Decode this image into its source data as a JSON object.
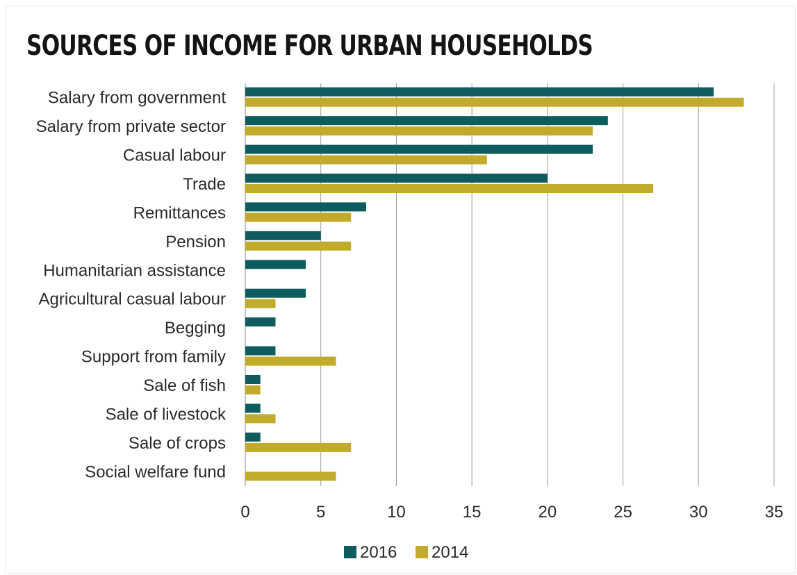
{
  "chart_data": {
    "type": "bar",
    "orientation": "horizontal",
    "title": "SOURCES OF INCOME FOR URBAN HOUSEHOLDS",
    "categories": [
      "Salary from government",
      "Salary from private sector",
      "Casual labour",
      "Trade",
      "Remittances",
      "Pension",
      "Humanitarian assistance",
      "Agricultural casual labour",
      "Begging",
      "Support from family",
      "Sale of fish",
      "Sale of livestock",
      "Sale of crops",
      "Social welfare fund"
    ],
    "series": [
      {
        "name": "2016",
        "color": "#0f5c5e",
        "values": [
          31,
          24,
          23,
          20,
          8,
          5,
          4,
          4,
          2,
          2,
          1,
          1,
          1,
          null
        ]
      },
      {
        "name": "2014",
        "color": "#c2aa2a",
        "values": [
          33,
          23,
          16,
          27,
          7,
          7,
          null,
          2,
          null,
          6,
          1,
          2,
          7,
          6
        ]
      }
    ],
    "xlim": [
      0,
      35
    ],
    "xticks": [
      0,
      5,
      10,
      15,
      20,
      25,
      30,
      35
    ],
    "grid": "vertical",
    "legend_position": "bottom"
  }
}
